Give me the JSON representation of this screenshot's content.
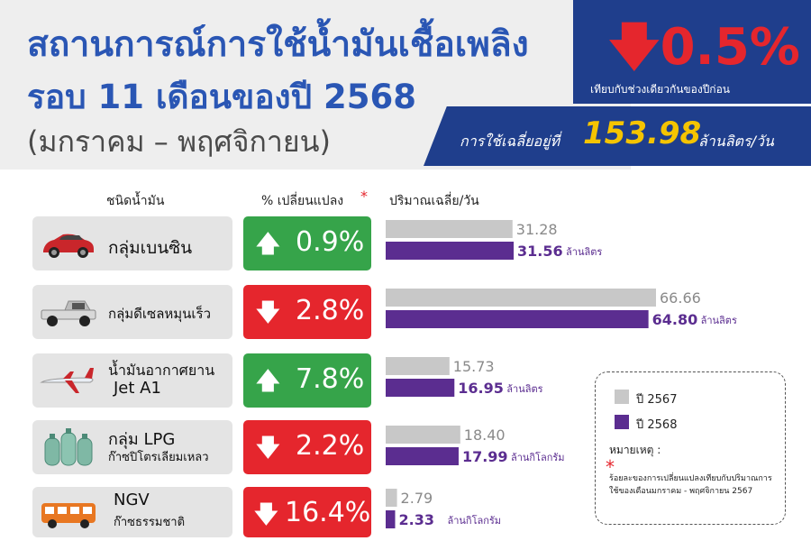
{
  "header": {
    "title_line1": "สถานการณ์การใช้น้ำมันเชื้อเพลิง",
    "title_line2": "รอบ 11 เดือนของปี 2568",
    "title_line3": "(มกราคม – พฤศจิกายน)",
    "overall_change": "0.5%",
    "overall_direction": "down",
    "overall_change_note": "เทียบกับช่วงเดียวกันของปีก่อน",
    "avg_prefix": "การใช้เฉลี่ยอยู่ที่",
    "avg_value": "153.98",
    "avg_unit": "ล้านลิตร/วัน"
  },
  "columns": {
    "type": "ชนิดน้ำมัน",
    "change": "% เปลี่ยนแปลง",
    "change_star": "*",
    "volume": "ปริมาณเฉลี่ย/วัน"
  },
  "rows": [
    {
      "name": "กลุ่มเบนซิน",
      "sub": "",
      "icon": "car-icon",
      "change": "0.9%",
      "direction": "up"
    },
    {
      "name": "กลุ่มดีเซลหมุนเร็ว",
      "sub": "",
      "icon": "pickup-truck-icon",
      "change": "2.8%",
      "direction": "down"
    },
    {
      "name": "น้ำมันอากาศยาน",
      "sub": "Jet A1",
      "icon": "airplane-icon",
      "change": "7.8%",
      "direction": "up"
    },
    {
      "name": "กลุ่ม LPG",
      "sub": "ก๊าซปิโตรเลียมเหลว",
      "icon": "gas-cylinder-icon",
      "change": "2.2%",
      "direction": "down"
    },
    {
      "name": "NGV",
      "sub": "ก๊าซธรรมชาติ",
      "icon": "bus-icon",
      "change": "16.4%",
      "direction": "down"
    }
  ],
  "legend": {
    "items": [
      {
        "label": "ปี 2567",
        "color": "#c8c8c8"
      },
      {
        "label": "ปี 2568",
        "color": "#5b2d90"
      }
    ],
    "note_title": "หมายเหตุ :",
    "note_star": "*",
    "note_text": "ร้อยละของการเปลี่ยนแปลงเทียบกับปริมาณการใช้ของเดือนมกราคม - พฤศจิกายน 2567"
  },
  "colors": {
    "title_blue": "#2a56b4",
    "navy": "#1f3e8c",
    "red": "#e5262d",
    "green": "#36a44a",
    "gold": "#f5c400",
    "bar_2567": "#c8c8c8",
    "bar_2568": "#5b2d90"
  },
  "chart_data": {
    "type": "bar",
    "orientation": "horizontal",
    "categories": [
      "กลุ่มเบนซิน",
      "กลุ่มดีเซลหมุนเร็ว",
      "น้ำมันอากาศยาน Jet A1",
      "กลุ่ม LPG",
      "NGV"
    ],
    "series": [
      {
        "name": "ปี 2567",
        "values": [
          31.28,
          66.66,
          15.73,
          18.4,
          2.79
        ]
      },
      {
        "name": "ปี 2568",
        "values": [
          31.56,
          64.8,
          16.95,
          17.99,
          2.33
        ]
      }
    ],
    "labels_2567": [
      "31.28",
      "66.66",
      "15.73",
      "18.40",
      "2.79"
    ],
    "labels_2568": [
      "31.56",
      "64.80",
      "16.95",
      "17.99",
      "2.33"
    ],
    "units": [
      "ล้านลิตร",
      "ล้านลิตร",
      "ล้านลิตร",
      "ล้านกิโลกรัม",
      "ล้านกิโลกรัม"
    ],
    "legend_position": "bottom-right"
  }
}
